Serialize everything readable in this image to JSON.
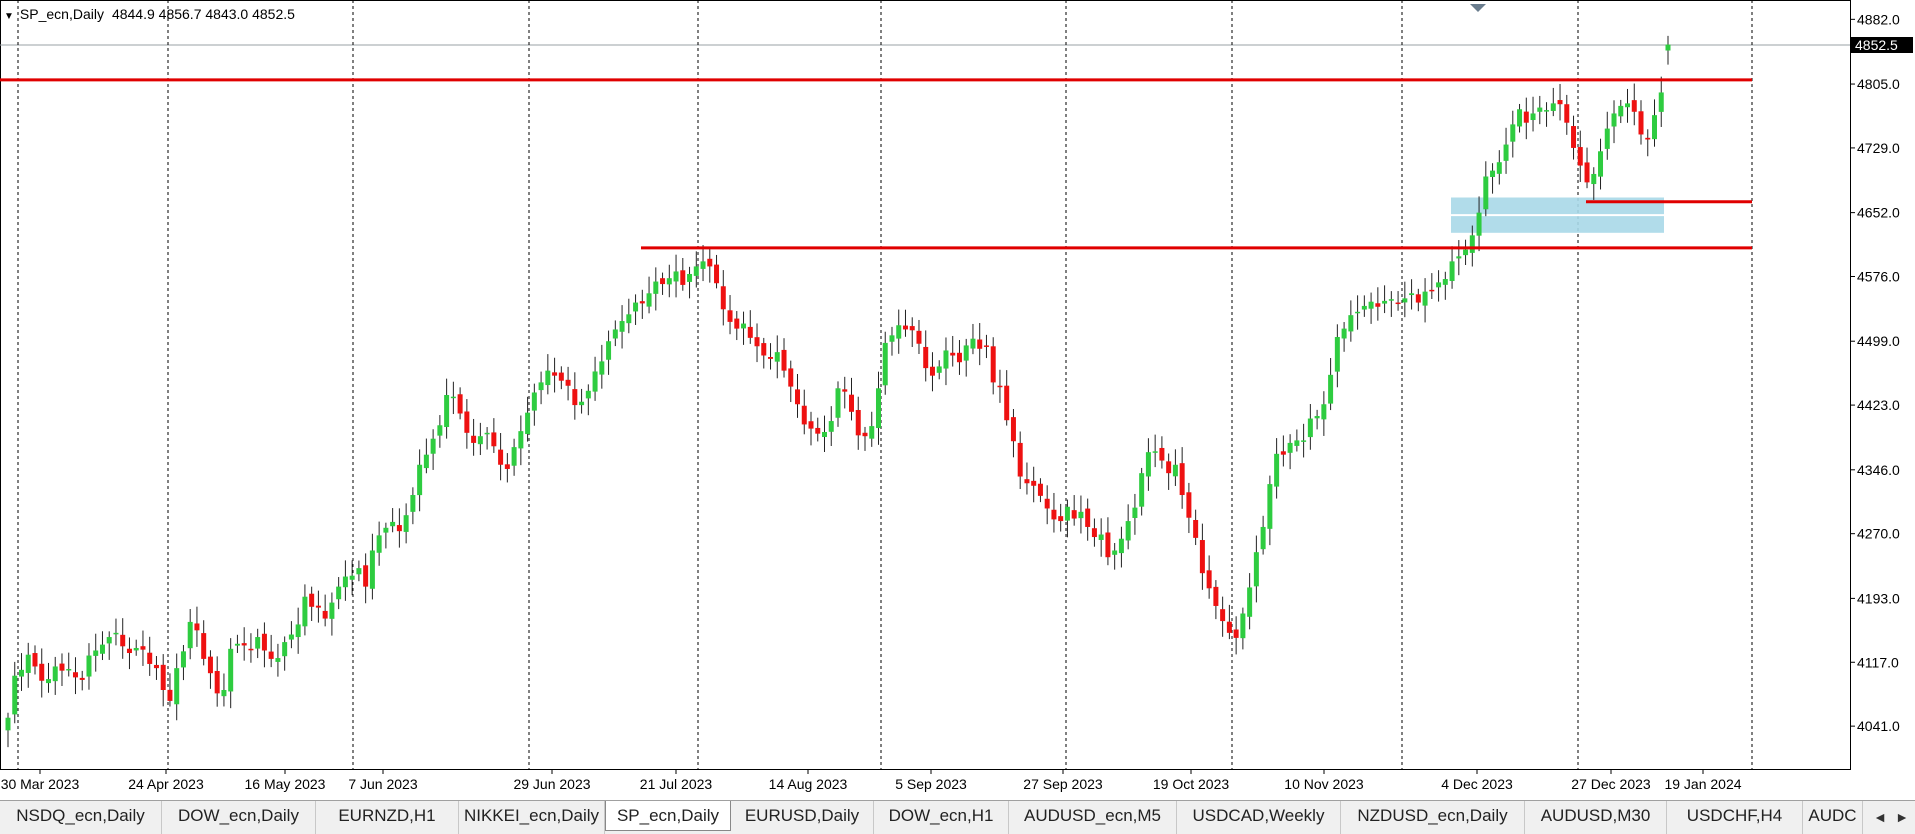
{
  "chart": {
    "menu_glyph": "▼",
    "symbol_timeframe": "SP_ecn,Daily",
    "ohlc": "4844.9 4856.7 4843.0 4852.5",
    "current_price_label": "4852.5"
  },
  "colors": {
    "bull": "#2ecc40",
    "bear": "#ee1111",
    "level_line": "#e00000",
    "zone": "#a8d8e8",
    "grid": "#000000",
    "price_tag_bg": "#000000"
  },
  "tabs": [
    {
      "label": "NSDQ_ecn,Daily",
      "active": false
    },
    {
      "label": "DOW_ecn,Daily",
      "active": false
    },
    {
      "label": "EURNZD,H1",
      "active": false
    },
    {
      "label": "NIKKEI_ecn,Daily",
      "active": false
    },
    {
      "label": "SP_ecn,Daily",
      "active": true
    },
    {
      "label": "EURUSD,Daily",
      "active": false
    },
    {
      "label": "DOW_ecn,H1",
      "active": false
    },
    {
      "label": "AUDUSD_ecn,M5",
      "active": false
    },
    {
      "label": "USDCAD,Weekly",
      "active": false
    },
    {
      "label": "NZDUSD_ecn,Daily",
      "active": false
    },
    {
      "label": "AUDUSD,M30",
      "active": false
    },
    {
      "label": "USDCHF,H4",
      "active": false
    },
    {
      "label": "AUDC",
      "active": false
    }
  ],
  "tab_scroll": {
    "left": "◄",
    "right": "►"
  },
  "chart_data": {
    "type": "candlestick",
    "y_ticks": [
      "4882.0",
      "4805.0",
      "4729.0",
      "4652.0",
      "4576.0",
      "4499.0",
      "4423.0",
      "4346.0",
      "4270.0",
      "4193.0",
      "4117.0",
      "4041.0"
    ],
    "x_ticks": [
      "30 Mar 2023",
      "24 Apr 2023",
      "16 May 2023",
      "7 Jun 2023",
      "29 Jun 2023",
      "21 Jul 2023",
      "14 Aug 2023",
      "5 Sep 2023",
      "27 Sep 2023",
      "19 Oct 2023",
      "10 Nov 2023",
      "4 Dec 2023",
      "27 Dec 2023",
      "19 Jan 2024"
    ],
    "ylim": [
      3990,
      4905
    ],
    "horizontal_levels": [
      4810,
      4610,
      4665
    ],
    "zone": [
      4628,
      4670
    ],
    "closes": [
      4051,
      4101,
      4108,
      4126,
      4112,
      4095,
      4097,
      4112,
      4107,
      4109,
      4099,
      4096,
      4125,
      4131,
      4138,
      4147,
      4152,
      4136,
      4128,
      4134,
      4132,
      4115,
      4110,
      4084,
      4071,
      4110,
      4130,
      4165,
      4155,
      4121,
      4104,
      4080,
      4084,
      4133,
      4139,
      4137,
      4133,
      4147,
      4131,
      4121,
      4122,
      4141,
      4150,
      4162,
      4195,
      4183,
      4182,
      4169,
      4188,
      4207,
      4219,
      4220,
      4229,
      4207,
      4250,
      4268,
      4277,
      4284,
      4273,
      4292,
      4316,
      4352,
      4364,
      4383,
      4399,
      4435,
      4433,
      4413,
      4390,
      4378,
      4386,
      4390,
      4374,
      4352,
      4347,
      4373,
      4392,
      4414,
      4438,
      4450,
      4464,
      4458,
      4452,
      4446,
      4423,
      4427,
      4440,
      4463,
      4475,
      4499,
      4513,
      4523,
      4531,
      4545,
      4544,
      4556,
      4570,
      4567,
      4574,
      4582,
      4566,
      4579,
      4588,
      4594,
      4588,
      4568,
      4537,
      4522,
      4514,
      4520,
      4503,
      4493,
      4482,
      4478,
      4486,
      4464,
      4445,
      4424,
      4400,
      4395,
      4389,
      4391,
      4404,
      4443,
      4439,
      4415,
      4387,
      4386,
      4398,
      4443,
      4497,
      4506,
      4518,
      4513,
      4512,
      4496,
      4467,
      4458,
      4469,
      4488,
      4482,
      4474,
      4494,
      4502,
      4490,
      4493,
      4450,
      4445,
      4405,
      4380,
      4338,
      4330,
      4327,
      4315,
      4300,
      4287,
      4285,
      4302,
      4288,
      4296,
      4278,
      4266,
      4269,
      4242,
      4250,
      4264,
      4285,
      4301,
      4342,
      4367,
      4368,
      4357,
      4342,
      4352,
      4316,
      4289,
      4265,
      4223,
      4205,
      4184,
      4166,
      4152,
      4146,
      4175,
      4206,
      4248,
      4278,
      4329,
      4365,
      4364,
      4378,
      4381,
      4381,
      4407,
      4410,
      4424,
      4459,
      4504,
      4514,
      4530,
      4534,
      4541,
      4546,
      4540,
      4547,
      4549,
      4545,
      4550,
      4556,
      4545,
      4558,
      4560,
      4569,
      4573,
      4594,
      4600,
      4608,
      4625,
      4652,
      4695,
      4702,
      4712,
      4733,
      4757,
      4775,
      4759,
      4770,
      4777,
      4774,
      4782,
      4781,
      4759,
      4729,
      4708,
      4688,
      4698,
      4725,
      4752,
      4770,
      4779,
      4782,
      4772,
      4745,
      4739,
      4768,
      4795,
      4852
    ]
  }
}
